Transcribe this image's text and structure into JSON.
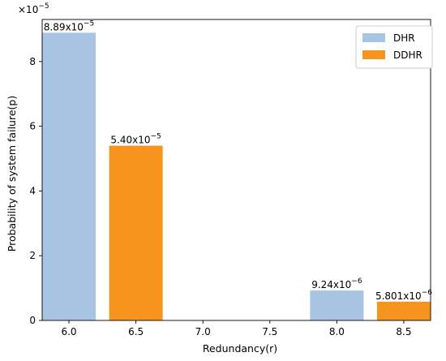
{
  "chart_data": {
    "type": "bar",
    "xlabel": "Redundancy(r)",
    "ylabel": "Probability of system failure(p)",
    "offset_text": "×10",
    "offset_exp": "−5",
    "xlim": [
      5.8,
      8.7
    ],
    "ylim": [
      0,
      9.3
    ],
    "xticks": [
      6.0,
      6.5,
      7.0,
      7.5,
      8.0,
      8.5
    ],
    "xtick_labels": [
      "6.0",
      "6.5",
      "7.0",
      "7.5",
      "8.0",
      "8.5"
    ],
    "yticks": [
      0,
      2,
      4,
      6,
      8
    ],
    "ytick_labels": [
      "0",
      "2",
      "4",
      "6",
      "8"
    ],
    "bar_width": 0.4,
    "legend_position": "top-right",
    "grid": false,
    "series": [
      {
        "name": "DHR",
        "color": "#a7c4e2",
        "x": [
          6.0,
          8.0
        ],
        "values": [
          8.89,
          0.924
        ],
        "labels": [
          {
            "mantissa": "8.89x10",
            "exp": "−5"
          },
          {
            "mantissa": "9.24x10",
            "exp": "−6"
          }
        ]
      },
      {
        "name": "DDHR",
        "color": "#f7941d",
        "x": [
          6.5,
          8.5
        ],
        "values": [
          5.4,
          0.5801
        ],
        "labels": [
          {
            "mantissa": "5.40x10",
            "exp": "−5"
          },
          {
            "mantissa": "5.801x10",
            "exp": "−6"
          }
        ]
      }
    ]
  }
}
